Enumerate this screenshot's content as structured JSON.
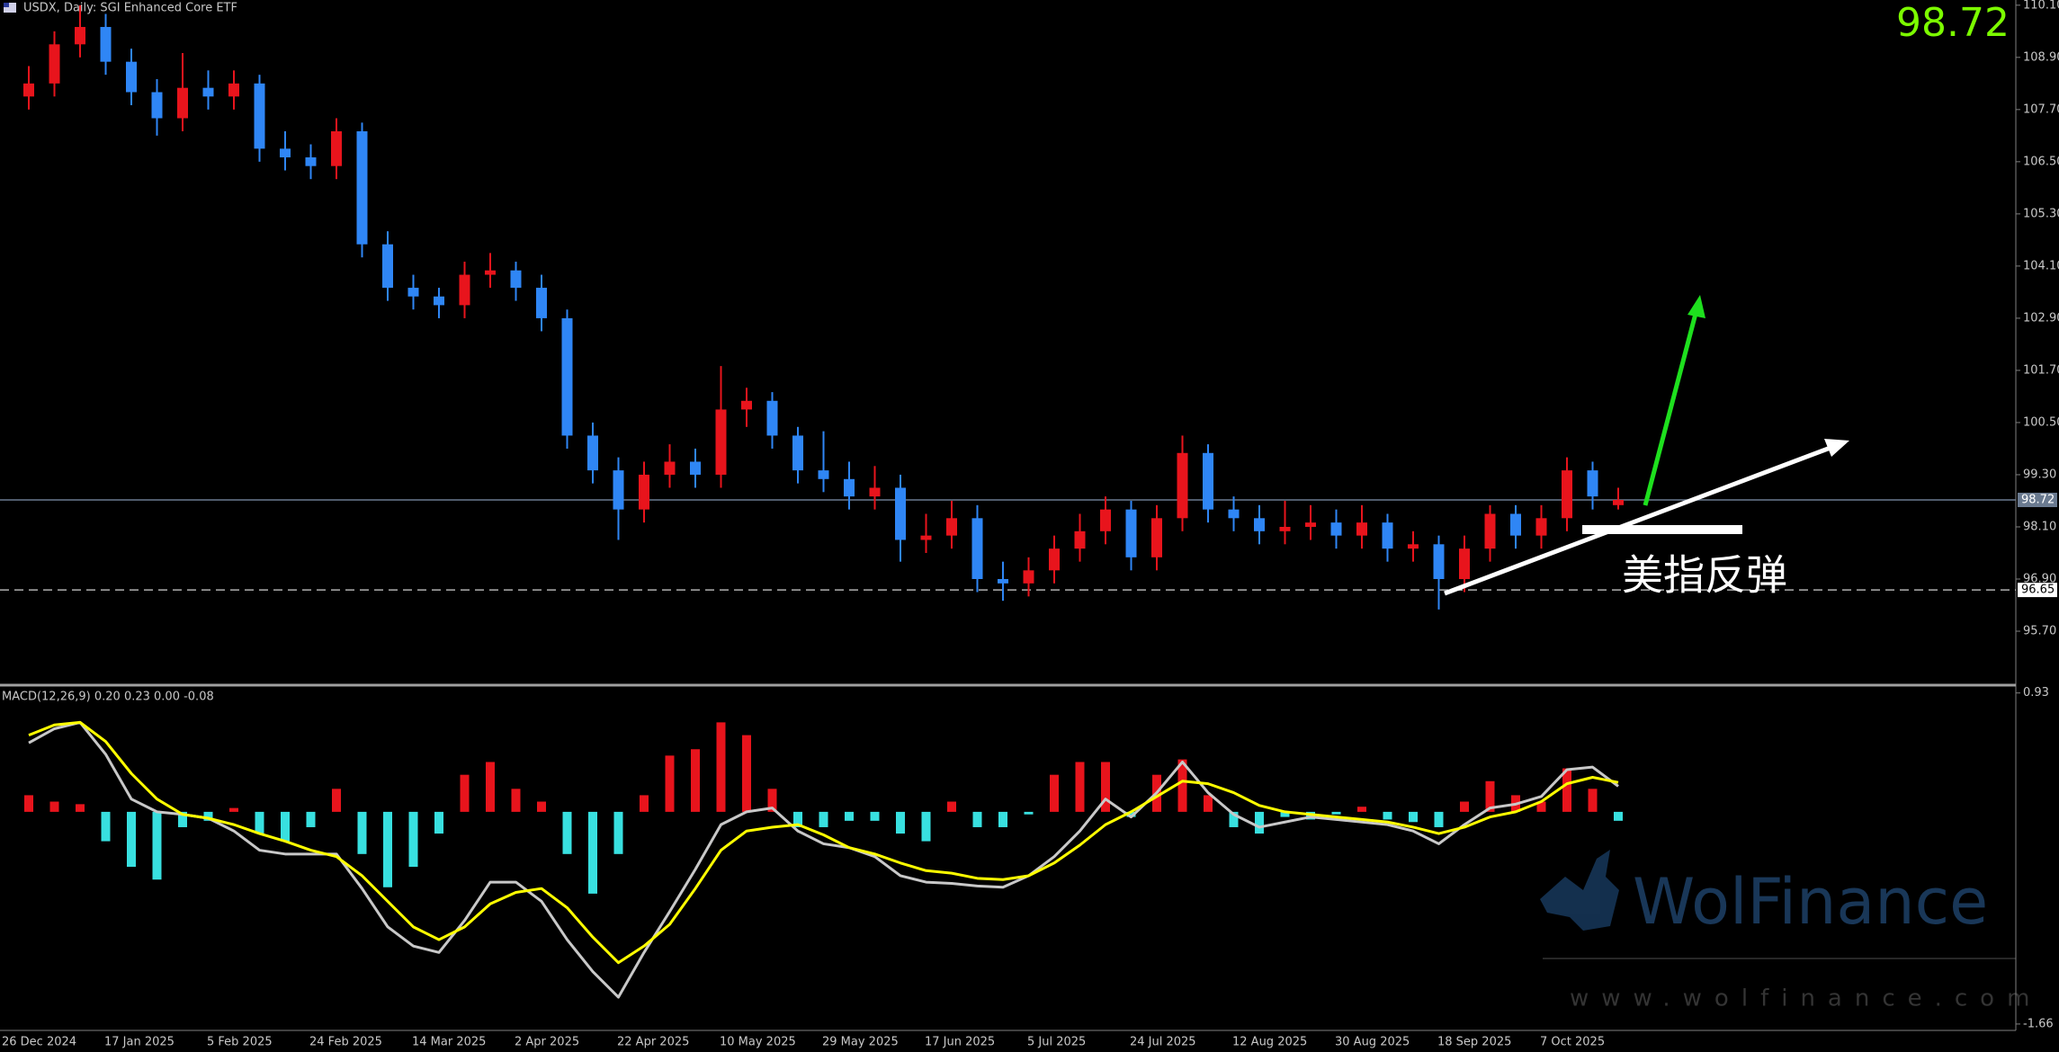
{
  "chart_data": [
    {
      "type": "candlestick",
      "title": "USDX, Daily:  SGI Enhanced Core ETF",
      "categories": [
        "26 Dec 2024",
        null,
        null,
        null,
        "17 Jan 2025",
        null,
        null,
        null,
        "5 Feb 2025",
        null,
        null,
        null,
        "24 Feb 2025",
        null,
        null,
        null,
        "14 Mar 2025",
        null,
        null,
        null,
        "2 Apr 2025",
        null,
        null,
        null,
        "22 Apr 2025",
        null,
        null,
        null,
        "10 May 2025",
        null,
        null,
        null,
        "29 May 2025",
        null,
        null,
        null,
        "17 Jun 2025",
        null,
        null,
        null,
        "5 Jul 2025",
        null,
        null,
        null,
        "24 Jul 2025",
        null,
        null,
        null,
        "12 Aug 2025",
        null,
        null,
        null,
        "30 Aug 2025",
        null,
        null,
        null,
        "18 Sep 2025",
        null,
        null,
        null,
        "7 Oct 2025",
        null,
        null
      ],
      "ohlc": [
        [
          108.0,
          108.7,
          107.7,
          108.3
        ],
        [
          108.3,
          109.5,
          108.0,
          109.2
        ],
        [
          109.2,
          110.1,
          108.9,
          109.6
        ],
        [
          109.6,
          109.9,
          108.5,
          108.8
        ],
        [
          108.8,
          109.1,
          107.8,
          108.1
        ],
        [
          108.1,
          108.4,
          107.1,
          107.5
        ],
        [
          107.5,
          109.0,
          107.2,
          108.2
        ],
        [
          108.2,
          108.6,
          107.7,
          108.0
        ],
        [
          108.0,
          108.6,
          107.7,
          108.3
        ],
        [
          108.3,
          108.5,
          106.5,
          106.8
        ],
        [
          106.8,
          107.2,
          106.3,
          106.6
        ],
        [
          106.6,
          106.9,
          106.1,
          106.4
        ],
        [
          106.4,
          107.5,
          106.1,
          107.2
        ],
        [
          107.2,
          107.4,
          104.3,
          104.6
        ],
        [
          104.6,
          104.9,
          103.3,
          103.6
        ],
        [
          103.6,
          103.9,
          103.1,
          103.4
        ],
        [
          103.4,
          103.6,
          102.9,
          103.2
        ],
        [
          103.2,
          104.2,
          102.9,
          103.9
        ],
        [
          103.9,
          104.4,
          103.6,
          104.0
        ],
        [
          104.0,
          104.2,
          103.3,
          103.6
        ],
        [
          103.6,
          103.9,
          102.6,
          102.9
        ],
        [
          102.9,
          103.1,
          99.9,
          100.2
        ],
        [
          100.2,
          100.5,
          99.1,
          99.4
        ],
        [
          99.4,
          99.7,
          97.8,
          98.5
        ],
        [
          98.5,
          99.6,
          98.2,
          99.3
        ],
        [
          99.3,
          100.0,
          99.0,
          99.6
        ],
        [
          99.6,
          99.9,
          99.0,
          99.3
        ],
        [
          99.3,
          101.8,
          99.0,
          100.8
        ],
        [
          100.8,
          101.3,
          100.4,
          101.0
        ],
        [
          101.0,
          101.2,
          99.9,
          100.2
        ],
        [
          100.2,
          100.4,
          99.1,
          99.4
        ],
        [
          99.4,
          100.3,
          98.9,
          99.2
        ],
        [
          99.2,
          99.6,
          98.5,
          98.8
        ],
        [
          98.8,
          99.5,
          98.5,
          99.0
        ],
        [
          99.0,
          99.3,
          97.3,
          97.8
        ],
        [
          97.8,
          98.4,
          97.5,
          97.9
        ],
        [
          97.9,
          98.7,
          97.6,
          98.3
        ],
        [
          98.3,
          98.6,
          96.6,
          96.9
        ],
        [
          96.9,
          97.3,
          96.4,
          96.8
        ],
        [
          96.8,
          97.4,
          96.5,
          97.1
        ],
        [
          97.1,
          97.9,
          96.8,
          97.6
        ],
        [
          97.6,
          98.4,
          97.3,
          98.0
        ],
        [
          98.0,
          98.8,
          97.7,
          98.5
        ],
        [
          98.5,
          98.7,
          97.1,
          97.4
        ],
        [
          97.4,
          98.6,
          97.1,
          98.3
        ],
        [
          98.3,
          100.2,
          98.0,
          99.8
        ],
        [
          99.8,
          100.0,
          98.2,
          98.5
        ],
        [
          98.5,
          98.8,
          98.0,
          98.3
        ],
        [
          98.3,
          98.6,
          97.7,
          98.0
        ],
        [
          98.0,
          98.7,
          97.7,
          98.1
        ],
        [
          98.1,
          98.6,
          97.8,
          98.2
        ],
        [
          98.2,
          98.5,
          97.6,
          97.9
        ],
        [
          97.9,
          98.6,
          97.6,
          98.2
        ],
        [
          98.2,
          98.4,
          97.3,
          97.6
        ],
        [
          97.6,
          98.0,
          97.3,
          97.7
        ],
        [
          97.7,
          97.9,
          96.2,
          96.9
        ],
        [
          96.9,
          97.9,
          96.6,
          97.6
        ],
        [
          97.6,
          98.6,
          97.3,
          98.4
        ],
        [
          98.4,
          98.6,
          97.6,
          97.9
        ],
        [
          97.9,
          98.6,
          97.6,
          98.3
        ],
        [
          98.3,
          99.7,
          98.0,
          99.4
        ],
        [
          99.4,
          99.6,
          98.5,
          98.8
        ],
        [
          98.6,
          99.0,
          98.5,
          98.72
        ]
      ],
      "up_color": "#e8141c",
      "down_color": "#2f86f5",
      "ylim": [
        94.48,
        110.22
      ],
      "yticks": [
        {
          "value": 110.1,
          "label": "110.10"
        },
        {
          "value": 108.9,
          "label": "108.90"
        },
        {
          "value": 107.7,
          "label": "107.70"
        },
        {
          "value": 106.5,
          "label": "106.50"
        },
        {
          "value": 105.3,
          "label": "105.30"
        },
        {
          "value": 104.1,
          "label": "104.10"
        },
        {
          "value": 102.9,
          "label": "102.90"
        },
        {
          "value": 101.7,
          "label": "101.70"
        },
        {
          "value": 100.5,
          "label": "100.50"
        },
        {
          "value": 99.3,
          "label": "99.30"
        },
        {
          "value": 98.1,
          "label": "98.10"
        },
        {
          "value": 96.9,
          "label": "96.90"
        },
        {
          "value": 95.7,
          "label": "95.70"
        }
      ],
      "last_price": 98.72,
      "support": 96.65,
      "annotation": "美指反弹"
    },
    {
      "type": "macd",
      "title": "MACD(12,26,9) 0.20 0.23 0.00 -0.08",
      "histogram": [
        0.13,
        0.08,
        0.06,
        -0.23,
        -0.43,
        -0.53,
        -0.12,
        -0.07,
        0.03,
        -0.17,
        -0.23,
        -0.12,
        0.18,
        -0.33,
        -0.59,
        -0.43,
        -0.17,
        0.29,
        0.39,
        0.18,
        0.08,
        -0.33,
        -0.64,
        -0.33,
        0.13,
        0.44,
        0.49,
        0.7,
        0.6,
        0.18,
        -0.12,
        -0.12,
        -0.07,
        -0.07,
        -0.17,
        -0.23,
        0.08,
        -0.12,
        -0.12,
        -0.02,
        0.29,
        0.39,
        0.39,
        -0.04,
        0.29,
        0.41,
        0.13,
        -0.12,
        -0.17,
        -0.04,
        -0.06,
        -0.02,
        0.04,
        -0.06,
        -0.08,
        -0.12,
        0.08,
        0.24,
        0.13,
        0.08,
        0.34,
        0.18,
        -0.07
      ],
      "pos_color": "#e8141c",
      "neg_color": "#38e0e0",
      "series": [
        {
          "color": "#c8c8c8",
          "values": [
            0.54,
            0.65,
            0.7,
            0.45,
            0.1,
            0.0,
            -0.02,
            -0.05,
            -0.15,
            -0.3,
            -0.33,
            -0.33,
            -0.33,
            -0.6,
            -0.9,
            -1.05,
            -1.1,
            -0.85,
            -0.55,
            -0.55,
            -0.7,
            -1.0,
            -1.25,
            -1.45,
            -1.1,
            -0.78,
            -0.45,
            -0.1,
            0.0,
            0.03,
            -0.15,
            -0.25,
            -0.28,
            -0.35,
            -0.5,
            -0.55,
            -0.56,
            -0.58,
            -0.59,
            -0.5,
            -0.35,
            -0.15,
            0.1,
            -0.04,
            0.15,
            0.39,
            0.15,
            -0.02,
            -0.12,
            -0.08,
            -0.04,
            -0.06,
            -0.08,
            -0.1,
            -0.15,
            -0.25,
            -0.1,
            0.03,
            0.06,
            0.12,
            0.33,
            0.35,
            0.2
          ]
        },
        {
          "color": "#ffff00",
          "values": [
            0.6,
            0.68,
            0.7,
            0.55,
            0.3,
            0.1,
            -0.02,
            -0.05,
            -0.1,
            -0.17,
            -0.23,
            -0.3,
            -0.35,
            -0.5,
            -0.7,
            -0.9,
            -1.0,
            -0.9,
            -0.72,
            -0.63,
            -0.6,
            -0.75,
            -0.98,
            -1.18,
            -1.05,
            -0.88,
            -0.6,
            -0.3,
            -0.15,
            -0.12,
            -0.1,
            -0.18,
            -0.28,
            -0.33,
            -0.4,
            -0.46,
            -0.48,
            -0.52,
            -0.53,
            -0.5,
            -0.4,
            -0.26,
            -0.1,
            0.0,
            0.12,
            0.24,
            0.22,
            0.15,
            0.05,
            0.0,
            -0.02,
            -0.04,
            -0.06,
            -0.08,
            -0.12,
            -0.17,
            -0.12,
            -0.04,
            0.0,
            0.08,
            0.22,
            0.27,
            0.23
          ]
        }
      ],
      "ylim": [
        -1.71,
        0.97
      ],
      "yticks": [
        0.93,
        -1.66
      ]
    }
  ],
  "watermark": {
    "brand": "WolFinance",
    "url": "www.wolfinance.com"
  }
}
